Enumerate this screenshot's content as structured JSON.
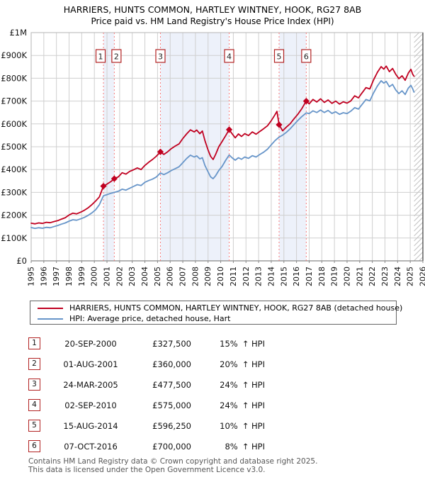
{
  "header": {
    "title": "HARRIERS, HUNTS COMMON, HARTLEY WINTNEY, HOOK, RG27 8AB",
    "subtitle": "Price paid vs. HM Land Registry's House Price Index (HPI)"
  },
  "chart_data": {
    "type": "line",
    "title": "HARRIERS, HUNTS COMMON, HARTLEY WINTNEY, HOOK, RG27 8AB",
    "subtitle": "Price paid vs. HM Land Registry's House Price Index (HPI)",
    "x_axis": {
      "min": 1995,
      "max": 2026,
      "tick_years": [
        1995,
        1996,
        1997,
        1998,
        1999,
        2000,
        2001,
        2002,
        2003,
        2004,
        2005,
        2006,
        2007,
        2008,
        2009,
        2010,
        2011,
        2012,
        2013,
        2014,
        2015,
        2016,
        2017,
        2018,
        2019,
        2020,
        2021,
        2022,
        2023,
        2024,
        2025,
        2026
      ]
    },
    "y_axis": {
      "min": 0,
      "max": 1000000,
      "tick_step": 100000,
      "tick_labels": [
        "£0",
        "£100K",
        "£200K",
        "£300K",
        "£400K",
        "£500K",
        "£600K",
        "£700K",
        "£800K",
        "£900K",
        "£1M"
      ]
    },
    "grid": true,
    "legend_position": "bottom",
    "series": [
      {
        "name": "HARRIERS, HUNTS COMMON, HARTLEY WINTNEY, HOOK, RG27 8AB (detached house)",
        "color": "#c00020",
        "points_year_gbpk": [
          [
            1995.0,
            165
          ],
          [
            1995.3,
            162
          ],
          [
            1995.6,
            166
          ],
          [
            1995.9,
            164
          ],
          [
            1996.2,
            169
          ],
          [
            1996.5,
            167
          ],
          [
            1996.8,
            172
          ],
          [
            1997.1,
            176
          ],
          [
            1997.4,
            183
          ],
          [
            1997.7,
            189
          ],
          [
            1998.0,
            201
          ],
          [
            1998.3,
            209
          ],
          [
            1998.6,
            206
          ],
          [
            1998.9,
            213
          ],
          [
            1999.2,
            221
          ],
          [
            1999.5,
            232
          ],
          [
            1999.8,
            246
          ],
          [
            2000.1,
            262
          ],
          [
            2000.4,
            280
          ],
          [
            2000.72,
            327.5
          ],
          [
            2001.0,
            336
          ],
          [
            2001.3,
            347
          ],
          [
            2001.58,
            360
          ],
          [
            2001.9,
            368
          ],
          [
            2002.2,
            386
          ],
          [
            2002.5,
            380
          ],
          [
            2002.8,
            392
          ],
          [
            2003.1,
            399
          ],
          [
            2003.4,
            407
          ],
          [
            2003.7,
            400
          ],
          [
            2004.0,
            418
          ],
          [
            2004.3,
            432
          ],
          [
            2004.6,
            444
          ],
          [
            2004.9,
            458
          ],
          [
            2005.23,
            477.5
          ],
          [
            2005.5,
            466
          ],
          [
            2005.8,
            478
          ],
          [
            2006.1,
            492
          ],
          [
            2006.4,
            503
          ],
          [
            2006.7,
            512
          ],
          [
            2007.0,
            536
          ],
          [
            2007.3,
            556
          ],
          [
            2007.6,
            574
          ],
          [
            2007.9,
            565
          ],
          [
            2008.1,
            573
          ],
          [
            2008.35,
            557
          ],
          [
            2008.55,
            569
          ],
          [
            2008.75,
            527
          ],
          [
            2009.0,
            486
          ],
          [
            2009.2,
            458
          ],
          [
            2009.4,
            444
          ],
          [
            2009.6,
            466
          ],
          [
            2009.85,
            500
          ],
          [
            2010.1,
            522
          ],
          [
            2010.4,
            549
          ],
          [
            2010.67,
            575
          ],
          [
            2010.9,
            557
          ],
          [
            2011.15,
            539
          ],
          [
            2011.4,
            556
          ],
          [
            2011.65,
            545
          ],
          [
            2011.9,
            557
          ],
          [
            2012.2,
            549
          ],
          [
            2012.5,
            565
          ],
          [
            2012.8,
            555
          ],
          [
            2013.1,
            567
          ],
          [
            2013.4,
            579
          ],
          [
            2013.7,
            592
          ],
          [
            2014.0,
            614
          ],
          [
            2014.25,
            636
          ],
          [
            2014.45,
            655
          ],
          [
            2014.62,
            596.25
          ],
          [
            2014.9,
            570
          ],
          [
            2015.2,
            586
          ],
          [
            2015.5,
            601
          ],
          [
            2015.8,
            622
          ],
          [
            2016.1,
            642
          ],
          [
            2016.4,
            665
          ],
          [
            2016.77,
            700
          ],
          [
            2017.0,
            688
          ],
          [
            2017.3,
            707
          ],
          [
            2017.6,
            696
          ],
          [
            2017.9,
            710
          ],
          [
            2018.2,
            694
          ],
          [
            2018.5,
            705
          ],
          [
            2018.8,
            690
          ],
          [
            2019.1,
            700
          ],
          [
            2019.4,
            687
          ],
          [
            2019.7,
            697
          ],
          [
            2020.0,
            691
          ],
          [
            2020.3,
            701
          ],
          [
            2020.6,
            723
          ],
          [
            2020.9,
            714
          ],
          [
            2021.2,
            737
          ],
          [
            2021.5,
            759
          ],
          [
            2021.8,
            753
          ],
          [
            2022.1,
            793
          ],
          [
            2022.4,
            826
          ],
          [
            2022.7,
            851
          ],
          [
            2022.9,
            840
          ],
          [
            2023.1,
            853
          ],
          [
            2023.35,
            829
          ],
          [
            2023.6,
            843
          ],
          [
            2023.85,
            818
          ],
          [
            2024.1,
            798
          ],
          [
            2024.35,
            811
          ],
          [
            2024.6,
            791
          ],
          [
            2024.85,
            823
          ],
          [
            2025.05,
            839
          ],
          [
            2025.2,
            817
          ],
          [
            2025.3,
            809
          ]
        ]
      },
      {
        "name": "HPI: Average price, detached house, Hart",
        "color": "#6795c9",
        "points_year_gbpk": [
          [
            1995.0,
            146
          ],
          [
            1995.3,
            142
          ],
          [
            1995.6,
            145
          ],
          [
            1995.9,
            143
          ],
          [
            1996.2,
            147
          ],
          [
            1996.5,
            145
          ],
          [
            1996.8,
            150
          ],
          [
            1997.1,
            155
          ],
          [
            1997.4,
            161
          ],
          [
            1997.7,
            166
          ],
          [
            1998.0,
            174
          ],
          [
            1998.3,
            180
          ],
          [
            1998.6,
            178
          ],
          [
            1998.9,
            184
          ],
          [
            1999.2,
            190
          ],
          [
            1999.5,
            199
          ],
          [
            1999.8,
            210
          ],
          [
            2000.1,
            224
          ],
          [
            2000.4,
            246
          ],
          [
            2000.72,
            285
          ],
          [
            2001.0,
            290
          ],
          [
            2001.3,
            296
          ],
          [
            2001.58,
            300
          ],
          [
            2001.9,
            305
          ],
          [
            2002.2,
            314
          ],
          [
            2002.5,
            310
          ],
          [
            2002.8,
            318
          ],
          [
            2003.1,
            326
          ],
          [
            2003.4,
            334
          ],
          [
            2003.7,
            330
          ],
          [
            2004.0,
            344
          ],
          [
            2004.3,
            352
          ],
          [
            2004.6,
            358
          ],
          [
            2004.9,
            367
          ],
          [
            2005.23,
            385
          ],
          [
            2005.5,
            378
          ],
          [
            2005.8,
            386
          ],
          [
            2006.1,
            396
          ],
          [
            2006.4,
            404
          ],
          [
            2006.7,
            412
          ],
          [
            2007.0,
            430
          ],
          [
            2007.3,
            448
          ],
          [
            2007.6,
            463
          ],
          [
            2007.9,
            455
          ],
          [
            2008.1,
            460
          ],
          [
            2008.35,
            447
          ],
          [
            2008.55,
            452
          ],
          [
            2008.75,
            418
          ],
          [
            2009.0,
            390
          ],
          [
            2009.2,
            368
          ],
          [
            2009.4,
            360
          ],
          [
            2009.6,
            373
          ],
          [
            2009.85,
            396
          ],
          [
            2010.1,
            413
          ],
          [
            2010.4,
            441
          ],
          [
            2010.67,
            463.7
          ],
          [
            2010.9,
            452
          ],
          [
            2011.15,
            441
          ],
          [
            2011.4,
            452
          ],
          [
            2011.65,
            445
          ],
          [
            2011.9,
            455
          ],
          [
            2012.2,
            449
          ],
          [
            2012.5,
            461
          ],
          [
            2012.8,
            455
          ],
          [
            2013.1,
            466
          ],
          [
            2013.4,
            476
          ],
          [
            2013.7,
            489
          ],
          [
            2014.0,
            508
          ],
          [
            2014.3,
            527
          ],
          [
            2014.62,
            542
          ],
          [
            2014.9,
            551
          ],
          [
            2015.2,
            563
          ],
          [
            2015.5,
            579
          ],
          [
            2015.8,
            597
          ],
          [
            2016.1,
            615
          ],
          [
            2016.4,
            631
          ],
          [
            2016.77,
            648
          ],
          [
            2017.0,
            645
          ],
          [
            2017.3,
            657
          ],
          [
            2017.6,
            650
          ],
          [
            2017.9,
            661
          ],
          [
            2018.2,
            650
          ],
          [
            2018.5,
            659
          ],
          [
            2018.8,
            646
          ],
          [
            2019.1,
            653
          ],
          [
            2019.4,
            642
          ],
          [
            2019.7,
            649
          ],
          [
            2020.0,
            645
          ],
          [
            2020.3,
            656
          ],
          [
            2020.6,
            671
          ],
          [
            2020.9,
            665
          ],
          [
            2021.2,
            686
          ],
          [
            2021.5,
            707
          ],
          [
            2021.8,
            701
          ],
          [
            2022.1,
            736
          ],
          [
            2022.4,
            766
          ],
          [
            2022.7,
            789
          ],
          [
            2022.9,
            779
          ],
          [
            2023.1,
            786
          ],
          [
            2023.35,
            763
          ],
          [
            2023.6,
            773
          ],
          [
            2023.85,
            749
          ],
          [
            2024.1,
            733
          ],
          [
            2024.35,
            745
          ],
          [
            2024.6,
            729
          ],
          [
            2024.85,
            757
          ],
          [
            2025.05,
            769
          ],
          [
            2025.2,
            753
          ],
          [
            2025.3,
            739
          ]
        ]
      }
    ],
    "sales": [
      {
        "n": 1,
        "date": "20-SEP-2000",
        "year": 2000.72,
        "price_gbp": 327500,
        "vs_hpi": "15% ↑ HPI"
      },
      {
        "n": 2,
        "date": "01-AUG-2001",
        "year": 2001.58,
        "price_gbp": 360000,
        "vs_hpi": "20% ↑ HPI"
      },
      {
        "n": 3,
        "date": "24-MAR-2005",
        "year": 2005.23,
        "price_gbp": 477500,
        "vs_hpi": "24% ↑ HPI"
      },
      {
        "n": 4,
        "date": "02-SEP-2010",
        "year": 2010.67,
        "price_gbp": 575000,
        "vs_hpi": "24% ↑ HPI"
      },
      {
        "n": 5,
        "date": "15-AUG-2014",
        "year": 2014.62,
        "price_gbp": 596250,
        "vs_hpi": "10% ↑ HPI"
      },
      {
        "n": 6,
        "date": "07-OCT-2016",
        "year": 2016.77,
        "price_gbp": 700000,
        "vs_hpi": "8% ↑ HPI"
      }
    ],
    "shaded_bands_years": [
      [
        2000.72,
        2001.58
      ],
      [
        2005.23,
        2010.67
      ],
      [
        2014.62,
        2016.77
      ]
    ],
    "hatch_years": [
      2025.3,
      2026
    ],
    "colors": {
      "price_line": "#c00020",
      "hpi_line": "#6795c9",
      "grid": "#cfcfcf",
      "band_fill": "#edf1fa",
      "sale_dashed_line": "#f87c7c",
      "marker": "#c00020",
      "number_box_border": "#b22222",
      "axis": "#888888",
      "hatch": "#c4c4c4"
    }
  },
  "legend": {
    "items": [
      {
        "label": "HARRIERS, HUNTS COMMON, HARTLEY WINTNEY, HOOK, RG27 8AB (detached house)",
        "color": "#c00020"
      },
      {
        "label": "HPI: Average price, detached house, Hart",
        "color": "#6795c9"
      }
    ]
  },
  "table": {
    "rows": [
      {
        "n": "1",
        "date": "20-SEP-2000",
        "price": "£327,500",
        "pct": "15%",
        "hpi": "↑ HPI"
      },
      {
        "n": "2",
        "date": "01-AUG-2001",
        "price": "£360,000",
        "pct": "20%",
        "hpi": "↑ HPI"
      },
      {
        "n": "3",
        "date": "24-MAR-2005",
        "price": "£477,500",
        "pct": "24%",
        "hpi": "↑ HPI"
      },
      {
        "n": "4",
        "date": "02-SEP-2010",
        "price": "£575,000",
        "pct": "24%",
        "hpi": "↑ HPI"
      },
      {
        "n": "5",
        "date": "15-AUG-2014",
        "price": "£596,250",
        "pct": "10%",
        "hpi": "↑ HPI"
      },
      {
        "n": "6",
        "date": "07-OCT-2016",
        "price": "£700,000",
        "pct": "8%",
        "hpi": "↑ HPI"
      }
    ]
  },
  "footer": {
    "line1": "Contains HM Land Registry data © Crown copyright and database right 2025.",
    "line2": "This data is licensed under the Open Government Licence v3.0."
  }
}
